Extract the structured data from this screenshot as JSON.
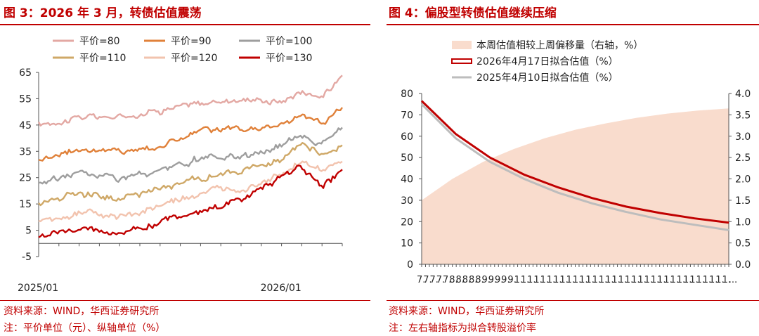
{
  "figure3": {
    "title": "图 3：2026 年 3 月，转债估值震荡",
    "source": "资料来源：WIND，华西证券研究所",
    "note": "注：平价单位（元）、纵轴单位（%）"
  },
  "figure4": {
    "title": "图 4：偏股型转债估值继续压缩",
    "source": "资料来源：WIND，华西证券研究所",
    "note": "注：左右轴指标为拟合转股溢价率"
  },
  "chart_data": [
    {
      "type": "line",
      "title": "图 3：2026 年 3 月，转债估值震荡",
      "ylim": [
        -5,
        65
      ],
      "yticks": [
        -5,
        5,
        15,
        25,
        35,
        45,
        55,
        65
      ],
      "x_range": [
        "2025-01",
        "2026-04"
      ],
      "xticks": [
        "2025/01",
        "2026/01"
      ],
      "grid": false,
      "legend_position": "top",
      "series": [
        {
          "name": "平价=80",
          "color": "#e3a8a3",
          "x": [
            "2025-01",
            "2025-03",
            "2025-05",
            "2025-07",
            "2025-09",
            "2025-11",
            "2026-01",
            "2026-02",
            "2026-03",
            "2026-04"
          ],
          "values": [
            45,
            48,
            48,
            51,
            53,
            55,
            54,
            58,
            56,
            63
          ]
        },
        {
          "name": "平价=90",
          "color": "#e0813a",
          "x": [
            "2025-01",
            "2025-03",
            "2025-05",
            "2025-07",
            "2025-09",
            "2025-11",
            "2026-01",
            "2026-02",
            "2026-03",
            "2026-04"
          ],
          "values": [
            32,
            36,
            35,
            37,
            43,
            43,
            45,
            49,
            46,
            52
          ]
        },
        {
          "name": "平价=100",
          "color": "#9e9e9e",
          "x": [
            "2025-01",
            "2025-03",
            "2025-05",
            "2025-07",
            "2025-09",
            "2025-11",
            "2026-01",
            "2026-02",
            "2026-03",
            "2026-04"
          ],
          "values": [
            23,
            27,
            25,
            27,
            32,
            33,
            37,
            42,
            38,
            44
          ]
        },
        {
          "name": "平价=110",
          "color": "#cfa867",
          "x": [
            "2025-01",
            "2025-03",
            "2025-05",
            "2025-07",
            "2025-09",
            "2025-11",
            "2026-01",
            "2026-02",
            "2026-03",
            "2026-04"
          ],
          "values": [
            15,
            20,
            17,
            21,
            25,
            27,
            32,
            37,
            33,
            37
          ]
        },
        {
          "name": "平价=120",
          "color": "#f2c3ae",
          "x": [
            "2025-01",
            "2025-03",
            "2025-05",
            "2025-07",
            "2025-09",
            "2025-11",
            "2026-01",
            "2026-02",
            "2026-03",
            "2026-04"
          ],
          "values": [
            8,
            12,
            10,
            14,
            19,
            21,
            27,
            31,
            27,
            31
          ]
        },
        {
          "name": "平价=130",
          "color": "#c00000",
          "x": [
            "2025-01",
            "2025-03",
            "2025-05",
            "2025-07",
            "2025-09",
            "2025-11",
            "2026-01",
            "2026-02",
            "2026-03",
            "2026-04"
          ],
          "values": [
            3,
            6,
            4,
            8,
            13,
            16,
            26,
            29,
            22,
            27
          ]
        }
      ]
    },
    {
      "type": "line",
      "title": "图 4：偏股型转债估值继续压缩",
      "ylim": [
        0,
        80
      ],
      "yticks": [
        0,
        10,
        20,
        30,
        40,
        50,
        60,
        70,
        80
      ],
      "y2lim": [
        0.0,
        4.0
      ],
      "y2ticks": [
        "0.0",
        "0.5",
        "1.0",
        "1.5",
        "2.0",
        "2.5",
        "3.0",
        "3.5",
        "4.0"
      ],
      "x_tick_labels": [
        "7.",
        "7.",
        "7.",
        "7.",
        "7.",
        "8.",
        "8.",
        "8.",
        "8.",
        "8.",
        "9.",
        "9.",
        "9.",
        "9.",
        "9.",
        "1.",
        "1.",
        "1.",
        "1.",
        "1.",
        "1.",
        "1.",
        "1.",
        "1.",
        "1.",
        "1.",
        "1.",
        "1.",
        "1.",
        "1.",
        "1.",
        "1.",
        "1.",
        "1.",
        "1.",
        "1.",
        "1.",
        "1.",
        "1.",
        "1.",
        "1.",
        "1.",
        "1.",
        "1.",
        "1.",
        "1.",
        "1.",
        "1.",
        "..."
      ],
      "grid": false,
      "legend_position": "top",
      "area": {
        "name": "本周估值相较上周偏移量（右轴，%）",
        "color": "#f9dccd",
        "values": [
          1.5,
          2.0,
          2.4,
          2.7,
          2.95,
          3.15,
          3.3,
          3.43,
          3.53,
          3.6,
          3.65
        ]
      },
      "series": [
        {
          "name": "2026年4月17日拟合估值（%）",
          "color": "#c00000",
          "values": [
            76.5,
            61,
            50,
            42,
            36,
            31,
            27,
            24,
            21.5,
            19.5
          ]
        },
        {
          "name": "2025年4月10日拟合估值（%）",
          "color": "#bdbdbd",
          "values": [
            75,
            59,
            48,
            40,
            33.5,
            28.5,
            24.5,
            21,
            18.5,
            16
          ]
        }
      ]
    }
  ]
}
